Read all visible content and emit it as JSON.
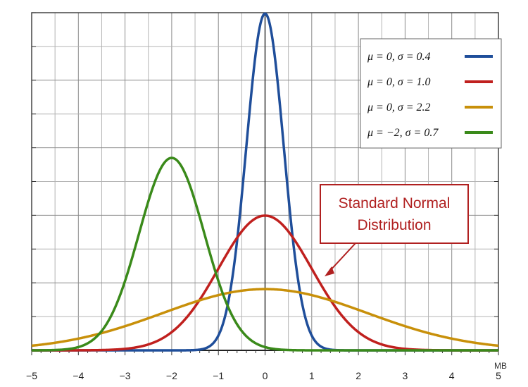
{
  "chart_data": {
    "type": "line",
    "xlim": [
      -5,
      5
    ],
    "ylim": [
      0,
      1.0
    ],
    "grid": true,
    "legend_position": "top-right",
    "x_ticks": [
      "−5",
      "−4",
      "−3",
      "−2",
      "−1",
      "0",
      "1",
      "2",
      "3",
      "4",
      "5"
    ],
    "x_unit_label": "MB",
    "series": [
      {
        "name": "μ = 0,  σ = 0.4",
        "mu": 0,
        "sigma": 0.4,
        "color": "#1f4e9a"
      },
      {
        "name": "μ = 0,  σ = 1.0",
        "mu": 0,
        "sigma": 1.0,
        "color": "#c0201e"
      },
      {
        "name": "μ = 0,  σ = 2.2",
        "mu": 0,
        "sigma": 2.2,
        "color": "#c8900a"
      },
      {
        "name": "μ = −2,  σ = 0.7",
        "mu": -2,
        "sigma": 0.7,
        "color": "#3a8a1a"
      }
    ],
    "annotation": {
      "line1": "Standard Normal",
      "line2": "Distribution",
      "target_x": 0.8,
      "color": "#b02020"
    }
  }
}
